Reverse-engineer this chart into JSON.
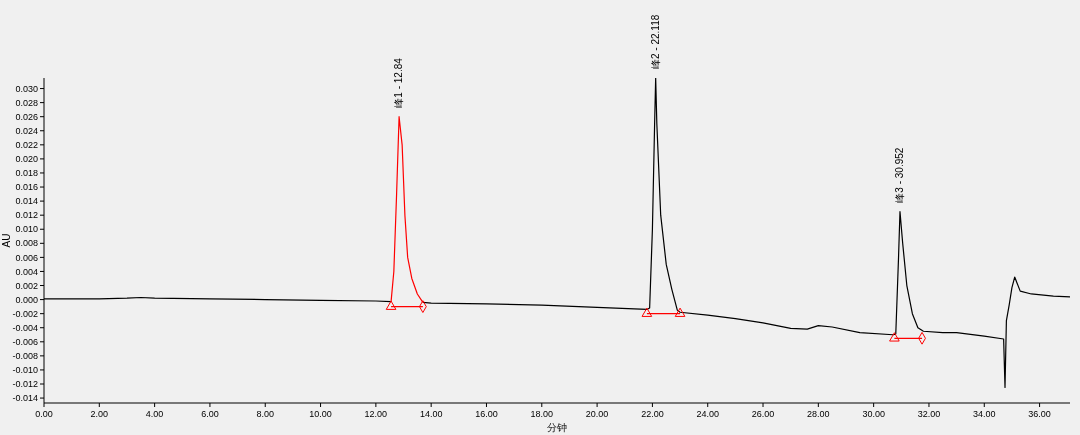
{
  "chart_data": {
    "type": "line",
    "xlabel": "分钟",
    "ylabel": "AU",
    "xlim": [
      0,
      37.1
    ],
    "ylim": [
      -0.0147,
      0.0315
    ],
    "xticks": [
      {
        "value": 0,
        "label": "0.00"
      },
      {
        "value": 2,
        "label": "2.00"
      },
      {
        "value": 4,
        "label": "4.00"
      },
      {
        "value": 6,
        "label": "6.00"
      },
      {
        "value": 8,
        "label": "8.00"
      },
      {
        "value": 10,
        "label": "10.00"
      },
      {
        "value": 12,
        "label": "12.00"
      },
      {
        "value": 14,
        "label": "14.00"
      },
      {
        "value": 16,
        "label": "16.00"
      },
      {
        "value": 18,
        "label": "18.00"
      },
      {
        "value": 20,
        "label": "20.00"
      },
      {
        "value": 22,
        "label": "22.00"
      },
      {
        "value": 24,
        "label": "24.00"
      },
      {
        "value": 26,
        "label": "26.00"
      },
      {
        "value": 28,
        "label": "28.00"
      },
      {
        "value": 30,
        "label": "30.00"
      },
      {
        "value": 32,
        "label": "32.00"
      },
      {
        "value": 34,
        "label": "34.00"
      },
      {
        "value": 36,
        "label": "36.00"
      }
    ],
    "yticks": [
      {
        "value": -0.014,
        "label": "-0.014"
      },
      {
        "value": -0.012,
        "label": "-0.012"
      },
      {
        "value": -0.01,
        "label": "-0.010"
      },
      {
        "value": -0.008,
        "label": "-0.008"
      },
      {
        "value": -0.006,
        "label": "-0.006"
      },
      {
        "value": -0.004,
        "label": "-0.004"
      },
      {
        "value": -0.002,
        "label": "-0.002"
      },
      {
        "value": 0,
        "label": "0.000"
      },
      {
        "value": 0.002,
        "label": "0.002"
      },
      {
        "value": 0.004,
        "label": "0.004"
      },
      {
        "value": 0.006,
        "label": "0.006"
      },
      {
        "value": 0.008,
        "label": "0.008"
      },
      {
        "value": 0.01,
        "label": "0.010"
      },
      {
        "value": 0.012,
        "label": "0.012"
      },
      {
        "value": 0.014,
        "label": "0.014"
      },
      {
        "value": 0.016,
        "label": "0.016"
      },
      {
        "value": 0.018,
        "label": "0.018"
      },
      {
        "value": 0.02,
        "label": "0.020"
      },
      {
        "value": 0.022,
        "label": "0.022"
      },
      {
        "value": 0.024,
        "label": "0.024"
      },
      {
        "value": 0.026,
        "label": "0.026"
      },
      {
        "value": 0.028,
        "label": "0.028"
      },
      {
        "value": 0.03,
        "label": "0.030"
      }
    ],
    "grid": false,
    "marker": "none",
    "series": [
      {
        "color": "#000000",
        "x": [
          0,
          1,
          2,
          3,
          3.5,
          4,
          6,
          8,
          10,
          12,
          12.55,
          13.0,
          13.7,
          14,
          16,
          18,
          20,
          21.8,
          21.9,
          22.0,
          22.08,
          22.118,
          22.16,
          22.3,
          22.5,
          22.7,
          22.9,
          23.0,
          24,
          25,
          26,
          27,
          27.6,
          28,
          28.5,
          29.5,
          30.7,
          30.8,
          30.9,
          30.952,
          31.05,
          31.2,
          31.4,
          31.6,
          31.8,
          32.5,
          33,
          34,
          34.7,
          34.75,
          34.8,
          34.9,
          35.0,
          35.1,
          35.3,
          35.7,
          36.5,
          37.1
        ],
        "values": [
          0.0001,
          0.0001,
          0.0001,
          0.0002,
          0.0003,
          0.0002,
          0.0001,
          0,
          -0.0001,
          -0.0002,
          -0.0003,
          null,
          -0.0004,
          -0.0005,
          -0.0006,
          -0.0008,
          -0.0011,
          -0.0014,
          -0.0012,
          0.01,
          0.025,
          0.0315,
          0.025,
          0.012,
          0.005,
          0.0015,
          -0.0015,
          -0.0018,
          -0.0022,
          -0.0027,
          -0.0033,
          -0.0041,
          -0.0042,
          -0.0037,
          -0.0039,
          -0.0047,
          -0.005,
          -0.0049,
          0.006,
          0.0125,
          0.008,
          0.002,
          -0.002,
          -0.004,
          -0.0045,
          -0.0047,
          -0.0047,
          -0.0052,
          -0.0056,
          -0.0125,
          -0.003,
          -0.0008,
          0.0017,
          0.0032,
          0.0012,
          0.0008,
          0.0005,
          0.0004
        ]
      },
      {
        "color": "#ff0000",
        "x": [
          12.55,
          12.65,
          12.75,
          12.84,
          12.95,
          13.05,
          13.15,
          13.3,
          13.5,
          13.7
        ],
        "values": [
          -0.0003,
          0.004,
          0.015,
          0.026,
          0.022,
          0.012,
          0.006,
          0.003,
          0.0008,
          -0.0004
        ]
      },
      {
        "color": "#ff0000",
        "x": [
          12.55,
          13.7,
          13.71,
          21.8,
          23.0,
          23.01,
          30.75,
          31.75
        ],
        "values": [
          -0.001,
          -0.001,
          null,
          -0.002,
          -0.002,
          null,
          -0.0055,
          -0.0055
        ]
      },
      {
        "type": "scatter",
        "marker": "triangle",
        "color": "#ff0000",
        "x": [
          12.55,
          21.8,
          23.0,
          30.75
        ],
        "values": [
          -0.001,
          -0.002,
          -0.002,
          -0.0055
        ]
      },
      {
        "type": "scatter",
        "marker": "diamond",
        "color": "#ff0000",
        "x": [
          13.7,
          31.75
        ],
        "values": [
          -0.001,
          -0.0055
        ]
      }
    ],
    "annotations": [
      {
        "text": "峰1 - 12.84",
        "x": 12.84,
        "y": 0.026
      },
      {
        "text": "峰2 - 22.118",
        "x": 22.118,
        "y": 0.0315
      },
      {
        "text": "峰3 - 30.952",
        "x": 30.952,
        "y": 0.0125
      }
    ]
  }
}
